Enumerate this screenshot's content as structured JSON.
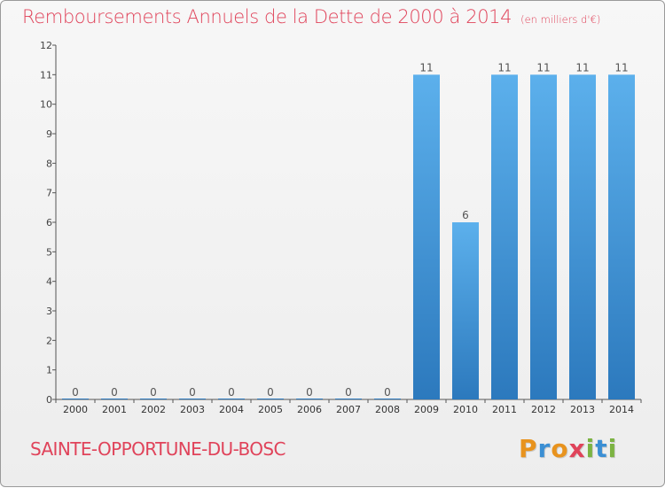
{
  "chart_data": {
    "type": "bar",
    "title": "Remboursements Annuels de la Dette de 2000 à 2014",
    "subtitle": "(en milliers d'€)",
    "categories": [
      "2000",
      "2001",
      "2002",
      "2003",
      "2004",
      "2005",
      "2006",
      "2007",
      "2008",
      "2009",
      "2010",
      "2011",
      "2012",
      "2013",
      "2014"
    ],
    "values": [
      0,
      0,
      0,
      0,
      0,
      0,
      0,
      0,
      0,
      11,
      6,
      11,
      11,
      11,
      11
    ],
    "value_labels": [
      "0",
      "0",
      "0",
      "0",
      "0",
      "0",
      "0",
      "0",
      "0",
      "11",
      "6",
      "11",
      "11",
      "11",
      "11"
    ],
    "ylim": [
      0,
      12
    ],
    "yticks": [
      0,
      1,
      2,
      3,
      4,
      5,
      6,
      7,
      8,
      9,
      10,
      11,
      12
    ],
    "xlabel": "",
    "ylabel": "",
    "grid": false,
    "legend": "none",
    "bar_color": "#4a9fdc"
  },
  "footer": {
    "commune": "SAINTE-OPPORTUNE-DU-BOSC",
    "logo_letters": [
      "P",
      "r",
      "o",
      "x",
      "i",
      "t",
      "i"
    ],
    "logo_colors": [
      "#e8931e",
      "#3b8fd4",
      "#e8931e",
      "#e0435a",
      "#7cb342",
      "#3b8fd4",
      "#7cb342"
    ]
  }
}
